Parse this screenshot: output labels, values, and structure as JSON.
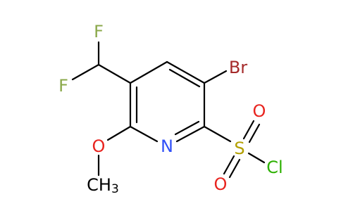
{
  "molecule": {
    "atoms": [
      {
        "label": "Br"
      },
      {
        "label": "F"
      },
      {
        "label": "F"
      },
      {
        "label": "O"
      },
      {
        "label": "N"
      },
      {
        "label": "S"
      },
      {
        "label": "O"
      },
      {
        "label": "O"
      },
      {
        "label": "Cl"
      }
    ],
    "methyl": {
      "label": "CH",
      "subscript": "3"
    }
  }
}
